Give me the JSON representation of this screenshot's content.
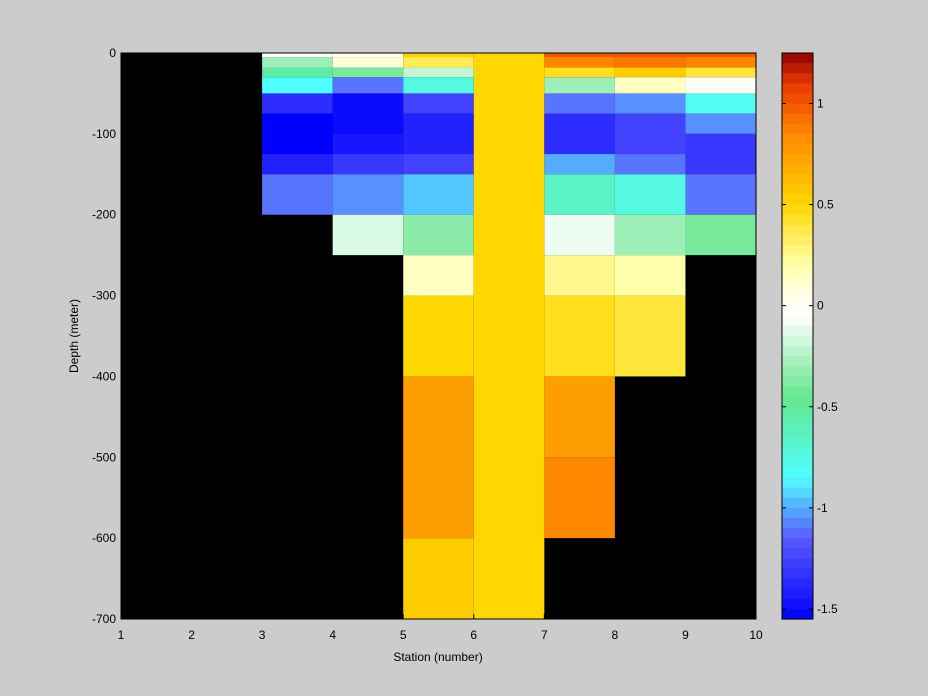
{
  "chart_data": {
    "type": "heatmap",
    "xlabel": "Station (number)",
    "ylabel": "Depth (meter)",
    "xlim": [
      1,
      10
    ],
    "ylim": [
      -700,
      0
    ],
    "x_ticks": [
      "1",
      "2",
      "3",
      "4",
      "5",
      "6",
      "7",
      "8",
      "9",
      "10"
    ],
    "y_ticks": [
      "0",
      "-100",
      "-200",
      "-300",
      "-400",
      "-500",
      "-600",
      "-700"
    ],
    "colorbar": {
      "range": [
        -1.55,
        1.25
      ],
      "ticks": [
        "1",
        "0.5",
        "0",
        "-0.5",
        "-1",
        "-1.5"
      ],
      "colormap": "jet-with-white-center"
    },
    "background_value": "NaN",
    "cells": [
      {
        "station": 3,
        "top": 0,
        "bottom": -5,
        "value": -0.05
      },
      {
        "station": 3,
        "top": -5,
        "bottom": -18,
        "value": -0.3
      },
      {
        "station": 3,
        "top": -18,
        "bottom": -30,
        "value": -0.55
      },
      {
        "station": 3,
        "top": -30,
        "bottom": -50,
        "value": -0.85
      },
      {
        "station": 3,
        "top": -50,
        "bottom": -75,
        "value": -1.35
      },
      {
        "station": 3,
        "top": -75,
        "bottom": -125,
        "value": -1.55
      },
      {
        "station": 3,
        "top": -125,
        "bottom": -150,
        "value": -1.4
      },
      {
        "station": 3,
        "top": -150,
        "bottom": -200,
        "value": -1.1
      },
      {
        "station": 4,
        "top": 0,
        "bottom": -5,
        "value": 0.05
      },
      {
        "station": 4,
        "top": -5,
        "bottom": -18,
        "value": 0.1
      },
      {
        "station": 4,
        "top": -18,
        "bottom": -30,
        "value": -0.4
      },
      {
        "station": 4,
        "top": -30,
        "bottom": -50,
        "value": -1.1
      },
      {
        "station": 4,
        "top": -50,
        "bottom": -100,
        "value": -1.5
      },
      {
        "station": 4,
        "top": -100,
        "bottom": -125,
        "value": -1.45
      },
      {
        "station": 4,
        "top": -125,
        "bottom": -150,
        "value": -1.3
      },
      {
        "station": 4,
        "top": -150,
        "bottom": -200,
        "value": -1.05
      },
      {
        "station": 4,
        "top": -200,
        "bottom": -250,
        "value": -0.15
      },
      {
        "station": 5,
        "top": 0,
        "bottom": -5,
        "value": 0.5
      },
      {
        "station": 5,
        "top": -5,
        "bottom": -18,
        "value": 0.35
      },
      {
        "station": 5,
        "top": -18,
        "bottom": -30,
        "value": -0.2
      },
      {
        "station": 5,
        "top": -30,
        "bottom": -50,
        "value": -0.75
      },
      {
        "station": 5,
        "top": -50,
        "bottom": -75,
        "value": -1.25
      },
      {
        "station": 5,
        "top": -75,
        "bottom": -125,
        "value": -1.4
      },
      {
        "station": 5,
        "top": -125,
        "bottom": -150,
        "value": -1.25
      },
      {
        "station": 5,
        "top": -150,
        "bottom": -200,
        "value": -0.95
      },
      {
        "station": 5,
        "top": -200,
        "bottom": -250,
        "value": -0.35
      },
      {
        "station": 5,
        "top": -250,
        "bottom": -300,
        "value": 0.15
      },
      {
        "station": 5,
        "top": -300,
        "bottom": -400,
        "value": 0.5
      },
      {
        "station": 5,
        "top": -400,
        "bottom": -600,
        "value": 0.75
      },
      {
        "station": 5,
        "top": -600,
        "bottom": -700,
        "value": 0.55
      },
      {
        "station": 6,
        "top": 0,
        "bottom": -700,
        "value": 0.5
      },
      {
        "station": 7,
        "top": 0,
        "bottom": -5,
        "value": 1.0
      },
      {
        "station": 7,
        "top": -5,
        "bottom": -18,
        "value": 0.85
      },
      {
        "station": 7,
        "top": -18,
        "bottom": -30,
        "value": 0.45
      },
      {
        "station": 7,
        "top": -30,
        "bottom": -50,
        "value": -0.3
      },
      {
        "station": 7,
        "top": -50,
        "bottom": -75,
        "value": -1.1
      },
      {
        "station": 7,
        "top": -75,
        "bottom": -125,
        "value": -1.35
      },
      {
        "station": 7,
        "top": -125,
        "bottom": -150,
        "value": -1.0
      },
      {
        "station": 7,
        "top": -150,
        "bottom": -200,
        "value": -0.65
      },
      {
        "station": 7,
        "top": -200,
        "bottom": -250,
        "value": -0.1
      },
      {
        "station": 7,
        "top": -250,
        "bottom": -300,
        "value": 0.25
      },
      {
        "station": 7,
        "top": -300,
        "bottom": -400,
        "value": 0.45
      },
      {
        "station": 7,
        "top": -400,
        "bottom": -500,
        "value": 0.75
      },
      {
        "station": 7,
        "top": -500,
        "bottom": -600,
        "value": 0.85
      },
      {
        "station": 8,
        "top": 0,
        "bottom": -5,
        "value": 1.0
      },
      {
        "station": 8,
        "top": -5,
        "bottom": -18,
        "value": 0.9
      },
      {
        "station": 8,
        "top": -18,
        "bottom": -30,
        "value": 0.55
      },
      {
        "station": 8,
        "top": -30,
        "bottom": -50,
        "value": 0.15
      },
      {
        "station": 8,
        "top": -50,
        "bottom": -75,
        "value": -1.05
      },
      {
        "station": 8,
        "top": -75,
        "bottom": -125,
        "value": -1.25
      },
      {
        "station": 8,
        "top": -125,
        "bottom": -150,
        "value": -1.1
      },
      {
        "station": 8,
        "top": -150,
        "bottom": -200,
        "value": -0.75
      },
      {
        "station": 8,
        "top": -200,
        "bottom": -250,
        "value": -0.3
      },
      {
        "station": 8,
        "top": -250,
        "bottom": -300,
        "value": 0.2
      },
      {
        "station": 8,
        "top": -300,
        "bottom": -400,
        "value": 0.4
      },
      {
        "station": 9,
        "top": 0,
        "bottom": -5,
        "value": 1.0
      },
      {
        "station": 9,
        "top": -5,
        "bottom": -18,
        "value": 0.85
      },
      {
        "station": 9,
        "top": -18,
        "bottom": -30,
        "value": 0.4
      },
      {
        "station": 9,
        "top": -30,
        "bottom": -50,
        "value": 0.0
      },
      {
        "station": 9,
        "top": -50,
        "bottom": -75,
        "value": -0.8
      },
      {
        "station": 9,
        "top": -75,
        "bottom": -100,
        "value": -1.05
      },
      {
        "station": 9,
        "top": -100,
        "bottom": -150,
        "value": -1.3
      },
      {
        "station": 9,
        "top": -150,
        "bottom": -200,
        "value": -1.1
      },
      {
        "station": 9,
        "top": -200,
        "bottom": -250,
        "value": -0.4
      }
    ]
  },
  "colors": {
    "figure_background": "#cccccc",
    "axes_background": "#000000"
  }
}
